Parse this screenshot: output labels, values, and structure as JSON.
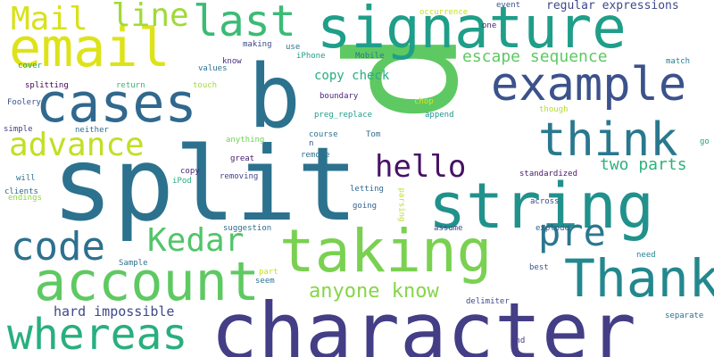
{
  "words": [
    {
      "text": "p",
      "color": "#5ec962"
    },
    {
      "text": "split",
      "color": "#2c728e"
    },
    {
      "text": "character",
      "color": "#433e85"
    },
    {
      "text": "string",
      "color": "#21918c"
    },
    {
      "text": "signature",
      "color": "#1f9e89"
    },
    {
      "text": "taking",
      "color": "#7ad151"
    },
    {
      "text": "b",
      "color": "#2c728e"
    },
    {
      "text": "email",
      "color": "#dde318"
    },
    {
      "text": "cases",
      "color": "#31688e"
    },
    {
      "text": "example",
      "color": "#3b528b"
    },
    {
      "text": "account",
      "color": "#5ec962"
    },
    {
      "text": "whereas",
      "color": "#29af7f"
    },
    {
      "text": "Thank",
      "color": "#23888e"
    },
    {
      "text": "think",
      "color": "#2a788e"
    },
    {
      "text": "Mail",
      "color": "#d8e219"
    },
    {
      "text": "last",
      "color": "#3bbb75"
    },
    {
      "text": "line",
      "color": "#a0da39"
    },
    {
      "text": "code",
      "color": "#2d708e"
    },
    {
      "text": "advance",
      "color": "#c2df23"
    },
    {
      "text": "Kedar",
      "color": "#52c569"
    },
    {
      "text": "pre",
      "color": "#2a778e"
    },
    {
      "text": "hello",
      "color": "#471164"
    },
    {
      "text": "escape sequence",
      "color": "#5ec962"
    },
    {
      "text": "anyone know",
      "color": "#86d549"
    },
    {
      "text": "two parts",
      "color": "#2db27d"
    },
    {
      "text": "copy check",
      "color": "#26ad81"
    },
    {
      "text": "hard impossible",
      "color": "#3e4989"
    },
    {
      "text": "regular expressions",
      "color": "#3e4989"
    },
    {
      "text": "occurrence",
      "color": "#c2df23"
    },
    {
      "text": "event",
      "color": "#3b528b"
    },
    {
      "text": "one",
      "color": "#482677"
    },
    {
      "text": "iPhone",
      "color": "#1f9e89"
    },
    {
      "text": "Mobile",
      "color": "#2a788e"
    },
    {
      "text": "making",
      "color": "#3e4989"
    },
    {
      "text": "use",
      "color": "#2d708e"
    },
    {
      "text": "know",
      "color": "#472f7d"
    },
    {
      "text": "values",
      "color": "#2c728e"
    },
    {
      "text": "match",
      "color": "#26828e"
    },
    {
      "text": "cover",
      "color": "#1fa187"
    },
    {
      "text": "splitting",
      "color": "#440154"
    },
    {
      "text": "return",
      "color": "#35b779"
    },
    {
      "text": "touch",
      "color": "#a5db36"
    },
    {
      "text": "boundary",
      "color": "#482878"
    },
    {
      "text": "Foolery",
      "color": "#3b528b"
    },
    {
      "text": "chop",
      "color": "#dde318"
    },
    {
      "text": "append",
      "color": "#21918c"
    },
    {
      "text": "though",
      "color": "#b5de2b"
    },
    {
      "text": "preg_replace",
      "color": "#1f9e89"
    },
    {
      "text": "simple",
      "color": "#433e85"
    },
    {
      "text": "neither",
      "color": "#2c728e"
    },
    {
      "text": "course",
      "color": "#2c728e"
    },
    {
      "text": "Tom",
      "color": "#306a8e"
    },
    {
      "text": "n",
      "color": "#3e4989"
    },
    {
      "text": "go",
      "color": "#1fa187"
    },
    {
      "text": "anything",
      "color": "#73d055"
    },
    {
      "text": "remove",
      "color": "#2c728e"
    },
    {
      "text": "great",
      "color": "#481a6c"
    },
    {
      "text": "copy",
      "color": "#482878"
    },
    {
      "text": "will",
      "color": "#2c728e"
    },
    {
      "text": "iPod",
      "color": "#26ad81"
    },
    {
      "text": "removing",
      "color": "#414487"
    },
    {
      "text": "standardized",
      "color": "#481769"
    },
    {
      "text": "clients",
      "color": "#31688e"
    },
    {
      "text": "endings",
      "color": "#8bd646"
    },
    {
      "text": "letting",
      "color": "#31688e"
    },
    {
      "text": "parsing",
      "color": "#b8de29"
    },
    {
      "text": "across",
      "color": "#3e4989"
    },
    {
      "text": "going",
      "color": "#32648e"
    },
    {
      "text": "suggestion",
      "color": "#2e6d8e"
    },
    {
      "text": "assume",
      "color": "#3f4788"
    },
    {
      "text": "explode",
      "color": "#35608d"
    },
    {
      "text": "Sample",
      "color": "#2c728e"
    },
    {
      "text": "best",
      "color": "#38598c"
    },
    {
      "text": "need",
      "color": "#25848e"
    },
    {
      "text": "part",
      "color": "#c8e020"
    },
    {
      "text": "seem",
      "color": "#2a768e"
    },
    {
      "text": "delimiter",
      "color": "#3e4a89"
    },
    {
      "text": "separate",
      "color": "#2d708e"
    },
    {
      "text": "end",
      "color": "#453781"
    }
  ]
}
